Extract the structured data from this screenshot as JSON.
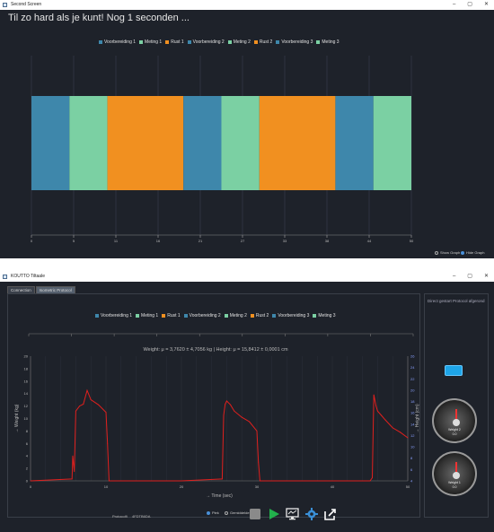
{
  "window1": {
    "title": "Second Screen",
    "controls": [
      "–",
      "▢",
      "✕"
    ],
    "heading": "Til zo hard als je kunt! Nog 1 seconden ...",
    "legend": [
      {
        "label": "Voorbereiding 1",
        "color": "#3e87ab"
      },
      {
        "label": "Meting 1",
        "color": "#7bd0a3"
      },
      {
        "label": "Rust 1",
        "color": "#f19020"
      },
      {
        "label": "Voorbereiding 2",
        "color": "#3e87ab"
      },
      {
        "label": "Meting 2",
        "color": "#7bd0a3"
      },
      {
        "label": "Rust 2",
        "color": "#f19020"
      },
      {
        "label": "Voorbereiding 3",
        "color": "#3e87ab"
      },
      {
        "label": "Meting 3",
        "color": "#7bd0a3"
      }
    ],
    "show_graph_label": "Show Graph",
    "hide_graph_label": "Hide Graph"
  },
  "window2": {
    "title": "KOUTTO Tiltaale",
    "controls": [
      "–",
      "▢",
      "✕"
    ],
    "tabs": [
      "Connection",
      "Isometric Protocol"
    ],
    "side_note": "Direct gestart Protocol afgerond",
    "legend": [
      {
        "label": "Voorbereiding 1",
        "color": "#3e87ab"
      },
      {
        "label": "Meting 1",
        "color": "#7bd0a3"
      },
      {
        "label": "Rust 1",
        "color": "#f19020"
      },
      {
        "label": "Voorbereiding 2",
        "color": "#3e87ab"
      },
      {
        "label": "Meting 2",
        "color": "#7bd0a3"
      },
      {
        "label": "Rust 2",
        "color": "#f19020"
      },
      {
        "label": "Voorbereiding 3",
        "color": "#3e87ab"
      },
      {
        "label": "Meting 3",
        "color": "#7bd0a3"
      }
    ],
    "stats_text": "Weight: μ = 3,7620 ± 4,7056 kg | Height: μ = 15,8412 ± 0,0001 cm",
    "gauge1": {
      "label": "Weight 2",
      "value": "0.0"
    },
    "gauge2": {
      "label": "Weight 1",
      "value": "0.0"
    },
    "protocol_label": "Protocolfi",
    "protocol_value": "4FDTB6DA",
    "radio_peak": "Piek",
    "radio_gemiddelde": "Gemiddelde",
    "colors": {
      "accent_blue": "#1ea5e8",
      "line_red": "#e0201e",
      "play_green": "#22b24c"
    }
  },
  "chart_data": [
    {
      "type": "bar",
      "orientation": "horizontal-timeline",
      "segments": [
        {
          "name": "Voorbereiding 1",
          "start": 0,
          "end": 5
        },
        {
          "name": "Meting 1",
          "start": 5,
          "end": 10
        },
        {
          "name": "Rust 1",
          "start": 10,
          "end": 20
        },
        {
          "name": "Voorbereiding 2",
          "start": 20,
          "end": 25
        },
        {
          "name": "Meting 2",
          "start": 25,
          "end": 30
        },
        {
          "name": "Rust 2",
          "start": 30,
          "end": 40
        },
        {
          "name": "Voorbereiding 3",
          "start": 40,
          "end": 45
        },
        {
          "name": "Meting 3",
          "start": 45,
          "end": 50
        }
      ],
      "xticks": [
        "0",
        "5",
        "11",
        "16",
        "21",
        "27",
        "33",
        "38",
        "44",
        "50"
      ],
      "xlim": [
        0,
        50
      ]
    },
    {
      "type": "line",
      "xlabel": "→ Time (sec)",
      "ylabel": "→ Weight (kg)",
      "ylabel_right": "→ Height (cm)",
      "xlim": [
        0,
        50
      ],
      "ylim": [
        0,
        20
      ],
      "yticks_left": [
        "0",
        "2",
        "4",
        "6",
        "8",
        "10",
        "12",
        "14",
        "16",
        "18",
        "20"
      ],
      "yticks_right": [
        "4",
        "6",
        "8",
        "10",
        "12",
        "14",
        "16",
        "18",
        "20",
        "22",
        "24",
        "26"
      ],
      "xticks": [
        "0",
        "10",
        "20",
        "30",
        "40",
        "50"
      ],
      "series": [
        {
          "x": [
            0,
            5.5,
            5.6,
            5.8,
            6.0,
            6.5,
            7.0,
            7.5,
            8.0,
            9.0,
            10.0,
            10.2,
            10.4,
            20.0,
            25.4,
            25.6,
            25.8,
            26.0,
            26.5,
            27.0,
            28.0,
            29.0,
            30.0,
            30.2,
            30.4,
            45.0,
            45.3,
            45.5,
            45.8,
            46.0,
            46.5,
            47.0,
            48.0,
            49.0,
            50.0
          ],
          "y": [
            0,
            0.3,
            4.0,
            1.5,
            11.2,
            12.0,
            12.3,
            14.5,
            13.0,
            12.2,
            11.0,
            6.0,
            0,
            0,
            0.3,
            10.5,
            12.3,
            12.8,
            12.2,
            11.2,
            10.2,
            9.5,
            8.0,
            3.0,
            0,
            0,
            0.5,
            13.8,
            12.0,
            11.2,
            10.5,
            9.8,
            8.5,
            7.8,
            6.9
          ]
        }
      ]
    }
  ]
}
